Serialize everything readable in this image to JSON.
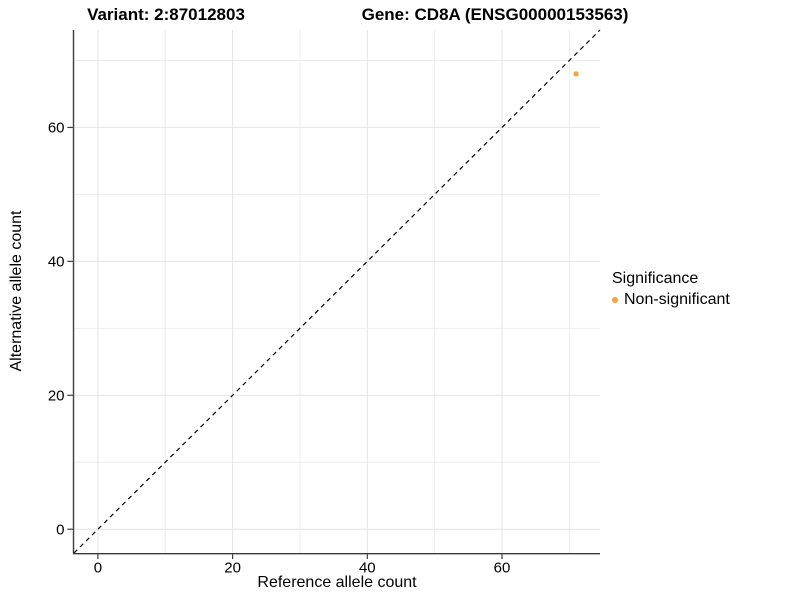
{
  "title": {
    "variant": "Variant: 2:87012803",
    "gene": "Gene: CD8A (ENSG00000153563)"
  },
  "chart_data": {
    "type": "scatter",
    "xlabel": "Reference allele count",
    "ylabel": "Alternative allele count",
    "xlim": [
      -3.55,
      74.55
    ],
    "ylim": [
      -3.55,
      74.55
    ],
    "x_ticks": [
      0,
      20,
      40,
      60
    ],
    "y_ticks": [
      0,
      20,
      40,
      60
    ],
    "x_minor_gridlines": [
      10,
      30,
      50,
      70
    ],
    "y_minor_gridlines": [
      10,
      30,
      50,
      70
    ],
    "grid": "on",
    "identity_line": {
      "slope": 1,
      "intercept": 0,
      "style": "dashed",
      "color": "#000000"
    },
    "series": [
      {
        "name": "Non-significant",
        "color": "#F9A13B",
        "points": [
          {
            "x": 71,
            "y": 68
          }
        ]
      }
    ],
    "legend": {
      "title": "Significance",
      "position": "right",
      "items": [
        {
          "label": "Non-significant",
          "color": "#F9A13B",
          "marker": "circle"
        }
      ]
    }
  },
  "colors": {
    "background": "#FFFFFF",
    "axis_line": "#3C3C3C",
    "tick_mark": "#3C3C3C",
    "grid_major": "#E4E4E4",
    "grid_minor": "#EDEDED",
    "text": "#000000"
  }
}
